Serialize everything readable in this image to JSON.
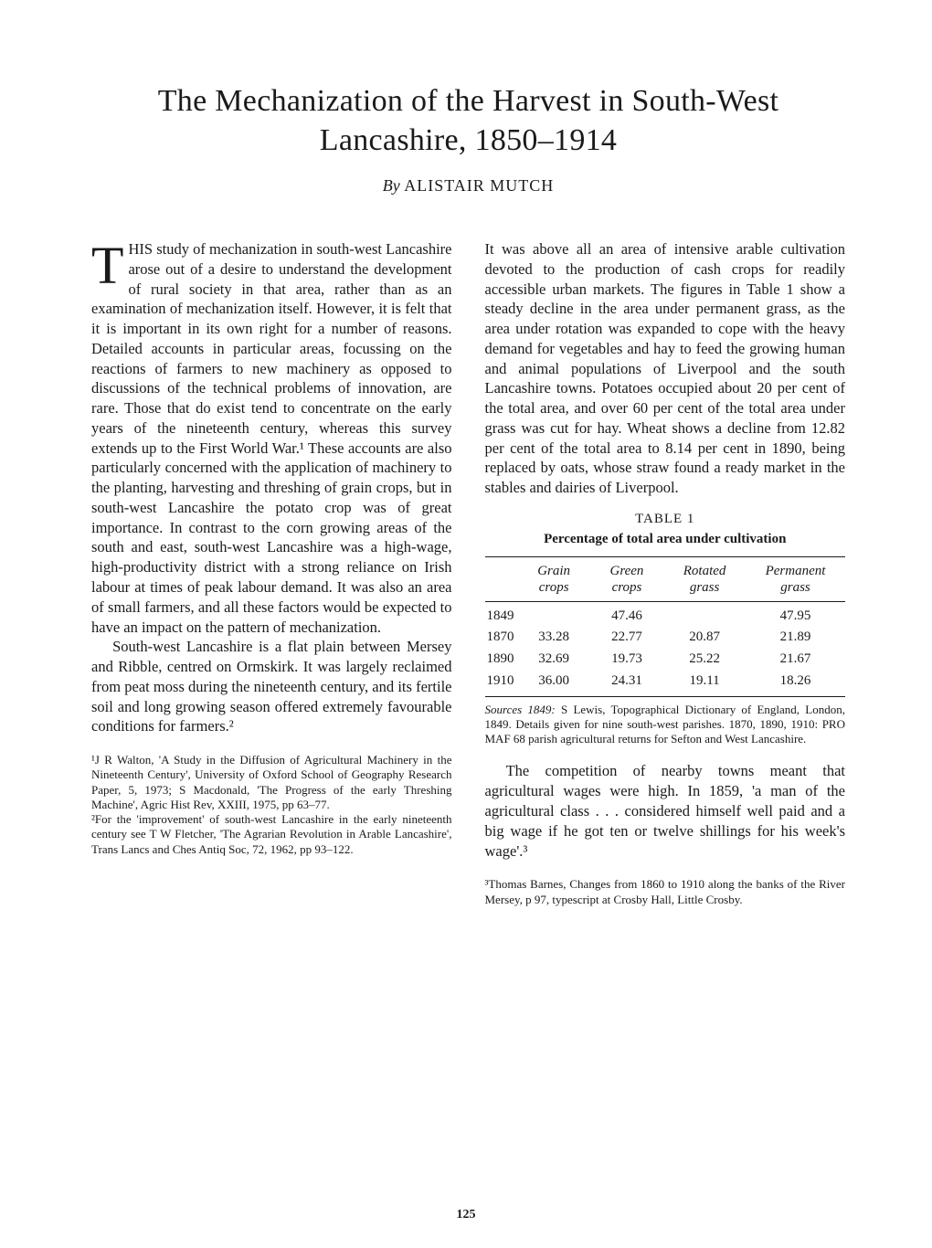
{
  "title": "The Mechanization of the Harvest in South-West Lancashire, 1850–1914",
  "byline": {
    "by": "By",
    "author": "ALISTAIR MUTCH"
  },
  "left_column": {
    "p1": "THIS study of mechanization in south-west Lancashire arose out of a desire to understand the development of rural society in that area, rather than as an examination of mechanization itself. However, it is felt that it is important in its own right for a number of reasons. Detailed accounts in particular areas, focussing on the reactions of farmers to new machinery as opposed to discussions of the technical problems of innovation, are rare. Those that do exist tend to concentrate on the early years of the nineteenth century, whereas this survey extends up to the First World War.¹ These accounts are also particularly concerned with the application of machinery to the planting, harvesting and threshing of grain crops, but in south-west Lancashire the potato crop was of great importance. In contrast to the corn growing areas of the south and east, south-west Lancashire was a high-wage, high-productivity district with a strong reliance on Irish labour at times of peak labour demand. It was also an area of small farmers, and all these factors would be expected to have an impact on the pattern of mechanization.",
    "p2": "South-west Lancashire is a flat plain between Mersey and Ribble, centred on Ormskirk. It was largely reclaimed from peat moss during the nineteenth century, and its fertile soil and long growing season offered extremely favourable conditions for farmers.²"
  },
  "right_column": {
    "p1": "It was above all an area of intensive arable cultivation devoted to the production of cash crops for readily accessible urban markets. The figures in Table 1 show a steady decline in the area under permanent grass, as the area under rotation was expanded to cope with the heavy demand for vegetables and hay to feed the growing human and animal populations of Liverpool and the south Lancashire towns. Potatoes occupied about 20 per cent of the total area, and over 60 per cent of the total area under grass was cut for hay. Wheat shows a decline from 12.82 per cent of the total area to 8.14 per cent in 1890, being replaced by oats, whose straw found a ready market in the stables and dairies of Liverpool.",
    "p2": "The competition of nearby towns meant that agricultural wages were high. In 1859, 'a man of the agricultural class . . . considered himself well paid and a big wage if he got ten or twelve shillings for his week's wage'.³"
  },
  "table": {
    "label": "TABLE 1",
    "caption": "Percentage of total area under cultivation",
    "columns": [
      "",
      "Grain crops",
      "Green crops",
      "Rotated grass",
      "Permanent grass"
    ],
    "rows": [
      [
        "1849",
        "",
        "47.46",
        "",
        "47.95"
      ],
      [
        "1870",
        "33.28",
        "22.77",
        "20.87",
        "21.89"
      ],
      [
        "1890",
        "32.69",
        "19.73",
        "25.22",
        "21.67"
      ],
      [
        "1910",
        "36.00",
        "24.31",
        "19.11",
        "18.26"
      ]
    ],
    "sources_label": "Sources 1849:",
    "sources_text": "S Lewis, Topographical Dictionary of England, London, 1849. Details given for nine south-west parishes. 1870, 1890, 1910: PRO MAF 68 parish agricultural returns for Sefton and West Lancashire."
  },
  "footnotes_left": {
    "fn1": "¹J R Walton, 'A Study in the Diffusion of Agricultural Machinery in the Nineteenth Century', University of Oxford School of Geography Research Paper, 5, 1973; S Macdonald, 'The Progress of the early Threshing Machine', Agric Hist Rev, XXIII, 1975, pp 63–77.",
    "fn2": "²For the 'improvement' of south-west Lancashire in the early nineteenth century see T W Fletcher, 'The Agrarian Revolution in Arable Lancashire', Trans Lancs and Ches Antiq Soc, 72, 1962, pp 93–122."
  },
  "footnotes_right": {
    "fn3": "³Thomas Barnes, Changes from 1860 to 1910 along the banks of the River Mersey, p 97, typescript at Crosby Hall, Little Crosby."
  },
  "page_number": "125",
  "colors": {
    "text": "#1a1a1a",
    "background": "#ffffff",
    "rule": "#1a1a1a"
  },
  "typography": {
    "title_fontsize": 34,
    "body_fontsize": 16.5,
    "footnote_fontsize": 13,
    "table_fontsize": 15,
    "font_family": "Times New Roman"
  }
}
